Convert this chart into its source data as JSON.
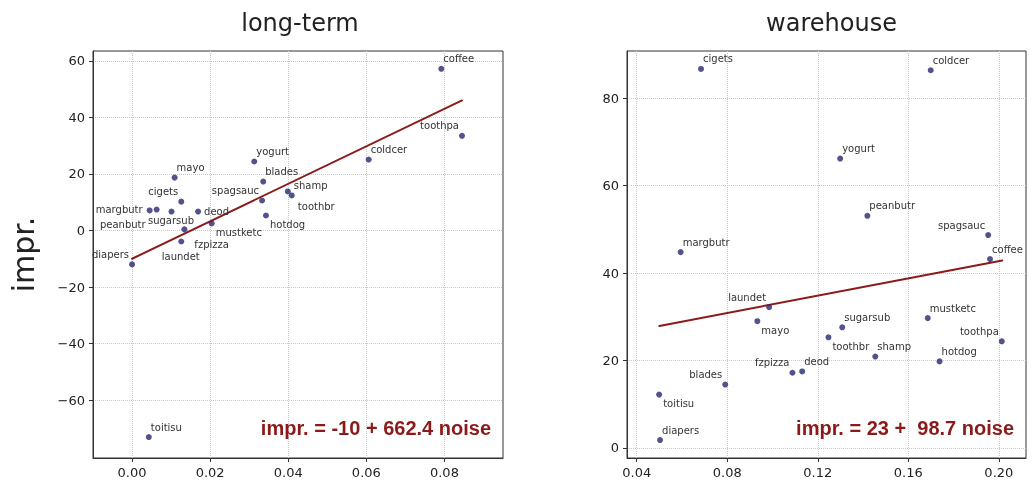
{
  "chart_data": [
    {
      "type": "scatter",
      "title": "long-term",
      "ylabel": "impr.",
      "xlim": [
        -0.01,
        0.095
      ],
      "ylim": [
        -80.5,
        63.5
      ],
      "xticks": [
        {
          "value": 0,
          "label": "0.00"
        },
        {
          "value": 0.02,
          "label": "0.02"
        },
        {
          "value": 0.04,
          "label": "0.04"
        },
        {
          "value": 0.06,
          "label": "0.06"
        },
        {
          "value": 0.08,
          "label": "0.08"
        }
      ],
      "yticks": [
        {
          "value": -60,
          "label": "−60"
        },
        {
          "value": -40,
          "label": "−40"
        },
        {
          "value": -20,
          "label": "−20"
        },
        0,
        20,
        40,
        60
      ],
      "grid": true,
      "marker": "circle",
      "series": [
        {
          "type": "scatter",
          "color": "#27276f",
          "x": [
            0.0792,
            0.0845,
            0.0606,
            0.0313,
            0.0109,
            0.0336,
            0.0333,
            0.0399,
            0.0409,
            0.0343,
            0.0204,
            0.0169,
            0.0126,
            0.0063,
            0.0045,
            0.0101,
            0.0134,
            0.0126,
            0.0,
            0.0043
          ],
          "values": [
            57.2,
            33.5,
            25.1,
            24.4,
            18.7,
            17.3,
            10.6,
            13.8,
            12.4,
            5.3,
            2.5,
            6.7,
            10.2,
            7.4,
            7.1,
            6.7,
            0.4,
            -3.9,
            -12.0,
            -73.1
          ]
        },
        {
          "type": "line",
          "color": "#8b1a1a",
          "marker": "none",
          "line_style": "solid",
          "x": [
            0,
            0.0845
          ],
          "values": [
            -10,
            46.0
          ]
        }
      ],
      "annotations": [
        {
          "text": "coffee",
          "x": 0.0792,
          "y": 57.2
        },
        {
          "text": "toothpa",
          "x": 0.0845,
          "y": 33.5
        },
        {
          "text": "coldcer",
          "x": 0.0606,
          "y": 25.1
        },
        {
          "text": "yogurt",
          "x": 0.0313,
          "y": 24.4
        },
        {
          "text": "mayo",
          "x": 0.0109,
          "y": 18.7
        },
        {
          "text": "blades",
          "x": 0.0336,
          "y": 17.3
        },
        {
          "text": "spagsauc",
          "x": 0.0333,
          "y": 10.6
        },
        {
          "text": "toothbr",
          "x": 0.0399,
          "y": 13.8
        },
        {
          "text": "shamp",
          "x": 0.0409,
          "y": 12.4
        },
        {
          "text": "hotdog",
          "x": 0.0343,
          "y": 5.3
        },
        {
          "text": "mustketc",
          "x": 0.0204,
          "y": 2.5
        },
        {
          "text": "deod",
          "x": 0.0169,
          "y": 6.7
        },
        {
          "text": "cigets",
          "x": 0.0126,
          "y": 10.2
        },
        {
          "text": "peanbutr",
          "x": 0.0063,
          "y": 7.4
        },
        {
          "text": "margbutr",
          "x": 0.0045,
          "y": 7.1
        },
        {
          "text": "sugarsub",
          "x": 0.0101,
          "y": 6.7
        },
        {
          "text": "fzpizza",
          "x": 0.0134,
          "y": 0.4
        },
        {
          "text": "laundet",
          "x": 0.0126,
          "y": -3.9
        },
        {
          "text": "diapers",
          "x": 0.0,
          "y": -12.0
        },
        {
          "text": "toitisu",
          "x": 0.0043,
          "y": -73.1
        },
        "impr. = -10 + 662.4 noise"
      ]
    },
    {
      "type": "scatter",
      "title": "warehouse",
      "xlim": [
        0.0357,
        0.212
      ],
      "ylim": [
        -2.3,
        90.8
      ],
      "xticks": [
        {
          "value": 0.04,
          "label": "0.04"
        },
        {
          "value": 0.08,
          "label": "0.08"
        },
        {
          "value": 0.12,
          "label": "0.12"
        },
        {
          "value": 0.16,
          "label": "0.16"
        },
        {
          "value": 0.2,
          "label": "0.20"
        }
      ],
      "yticks": [
        0,
        20,
        40,
        60,
        80
      ],
      "grid": true,
      "marker": "circle",
      "series": [
        {
          "type": "scatter",
          "color": "#27276f",
          "x": [
            0.0684,
            0.1699,
            0.1299,
            0.1419,
            0.1953,
            0.0594,
            0.1961,
            0.0985,
            0.0933,
            0.1686,
            0.1308,
            0.1247,
            0.2013,
            0.1454,
            0.1738,
            0.1131,
            0.1088,
            0.0791,
            0.0499,
            0.0503
          ],
          "values": [
            86.7,
            86.4,
            66.2,
            53.1,
            48.7,
            44.8,
            43.2,
            32.2,
            29.0,
            29.7,
            27.6,
            25.3,
            24.4,
            20.9,
            19.8,
            17.5,
            17.2,
            14.5,
            12.2,
            1.8
          ]
        },
        {
          "type": "line",
          "color": "#8b1a1a",
          "marker": "none",
          "line_style": "solid",
          "x": [
            0.05,
            0.2015
          ],
          "values": [
            27.9,
            42.9
          ]
        }
      ],
      "annotations": [
        {
          "text": "cigets",
          "x": 0.0684,
          "y": 86.7
        },
        {
          "text": "coldcer",
          "x": 0.1699,
          "y": 86.4
        },
        {
          "text": "yogurt",
          "x": 0.1299,
          "y": 66.2
        },
        {
          "text": "peanbutr",
          "x": 0.1419,
          "y": 53.1
        },
        {
          "text": "spagsauc",
          "x": 0.1953,
          "y": 48.7
        },
        {
          "text": "margbutr",
          "x": 0.0594,
          "y": 44.8
        },
        {
          "text": "coffee",
          "x": 0.1961,
          "y": 43.2
        },
        {
          "text": "laundet",
          "x": 0.0985,
          "y": 32.2
        },
        {
          "text": "mayo",
          "x": 0.0933,
          "y": 29.0
        },
        {
          "text": "mustketc",
          "x": 0.1686,
          "y": 29.7
        },
        {
          "text": "sugarsub",
          "x": 0.1308,
          "y": 27.6
        },
        {
          "text": "toothbr",
          "x": 0.1247,
          "y": 25.3
        },
        {
          "text": "toothpa",
          "x": 0.2013,
          "y": 24.4
        },
        {
          "text": "shamp",
          "x": 0.1454,
          "y": 20.9
        },
        {
          "text": "hotdog",
          "x": 0.1738,
          "y": 19.8
        },
        {
          "text": "deod",
          "x": 0.1131,
          "y": 17.5
        },
        {
          "text": "fzpizza",
          "x": 0.1088,
          "y": 17.2
        },
        {
          "text": "blades",
          "x": 0.0791,
          "y": 14.5
        },
        {
          "text": "toitisu",
          "x": 0.0499,
          "y": 12.2
        },
        {
          "text": "diapers",
          "x": 0.0503,
          "y": 1.8
        },
        "impr. = 23 +  98.7 noise"
      ]
    }
  ]
}
